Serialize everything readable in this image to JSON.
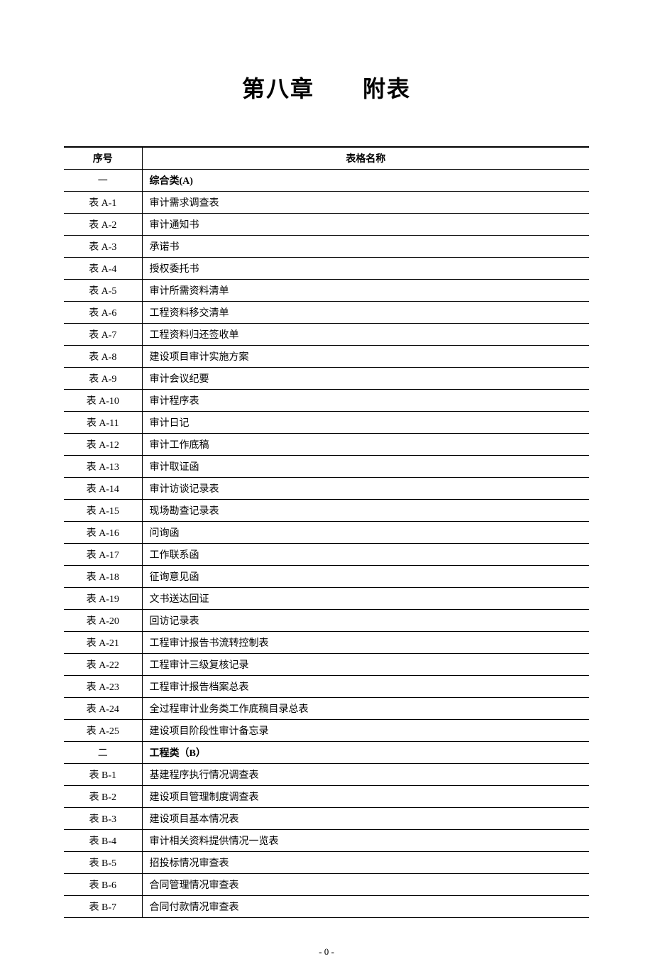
{
  "title": "第八章　　附表",
  "table": {
    "headers": {
      "col1": "序号",
      "col2": "表格名称"
    },
    "rows": [
      {
        "id": "一",
        "name": "综合类(A)",
        "category": true
      },
      {
        "id": "表 A-1",
        "name": "审计需求调查表"
      },
      {
        "id": "表 A-2",
        "name": "审计通知书"
      },
      {
        "id": "表 A-3",
        "name": "承诺书"
      },
      {
        "id": "表 A-4",
        "name": "授权委托书"
      },
      {
        "id": "表 A-5",
        "name": "审计所需资料清单"
      },
      {
        "id": "表 A-6",
        "name": "工程资料移交清单"
      },
      {
        "id": "表 A-7",
        "name": "工程资料归还签收单"
      },
      {
        "id": "表 A-8",
        "name": "建设项目审计实施方案"
      },
      {
        "id": "表 A-9",
        "name": "审计会议纪要"
      },
      {
        "id": "表 A-10",
        "name": "审计程序表"
      },
      {
        "id": "表 A-11",
        "name": "审计日记"
      },
      {
        "id": "表 A-12",
        "name": "审计工作底稿"
      },
      {
        "id": "表 A-13",
        "name": "审计取证函"
      },
      {
        "id": "表 A-14",
        "name": "审计访谈记录表"
      },
      {
        "id": "表 A-15",
        "name": "现场勘查记录表"
      },
      {
        "id": "表 A-16",
        "name": "问询函"
      },
      {
        "id": "表 A-17",
        "name": "工作联系函"
      },
      {
        "id": "表 A-18",
        "name": "征询意见函"
      },
      {
        "id": "表 A-19",
        "name": "文书送达回证"
      },
      {
        "id": "表 A-20",
        "name": "回访记录表"
      },
      {
        "id": "表 A-21",
        "name": "工程审计报告书流转控制表"
      },
      {
        "id": "表 A-22",
        "name": "工程审计三级复核记录"
      },
      {
        "id": "表 A-23",
        "name": "工程审计报告档案总表"
      },
      {
        "id": "表 A-24",
        "name": "全过程审计业务类工作底稿目录总表"
      },
      {
        "id": "表 A-25",
        "name": "建设项目阶段性审计备忘录"
      },
      {
        "id": "二",
        "name": "工程类（B）",
        "category": true
      },
      {
        "id": "表 B-1",
        "name": "基建程序执行情况调查表"
      },
      {
        "id": "表 B-2",
        "name": "建设项目管理制度调查表"
      },
      {
        "id": "表 B-3",
        "name": "建设项目基本情况表"
      },
      {
        "id": "表 B-4",
        "name": "审计相关资料提供情况一览表"
      },
      {
        "id": "表 B-5",
        "name": "招投标情况审查表"
      },
      {
        "id": "表 B-6",
        "name": "合同管理情况审查表"
      },
      {
        "id": "表 B-7",
        "name": "合同付款情况审查表"
      }
    ]
  },
  "pageNumber": "- 0 -",
  "styles": {
    "background_color": "#ffffff",
    "border_color": "#000000",
    "title_fontsize": 32,
    "body_fontsize": 14,
    "header_border_top_width": 2,
    "cell_border_width": 1,
    "col1_width": 110
  }
}
